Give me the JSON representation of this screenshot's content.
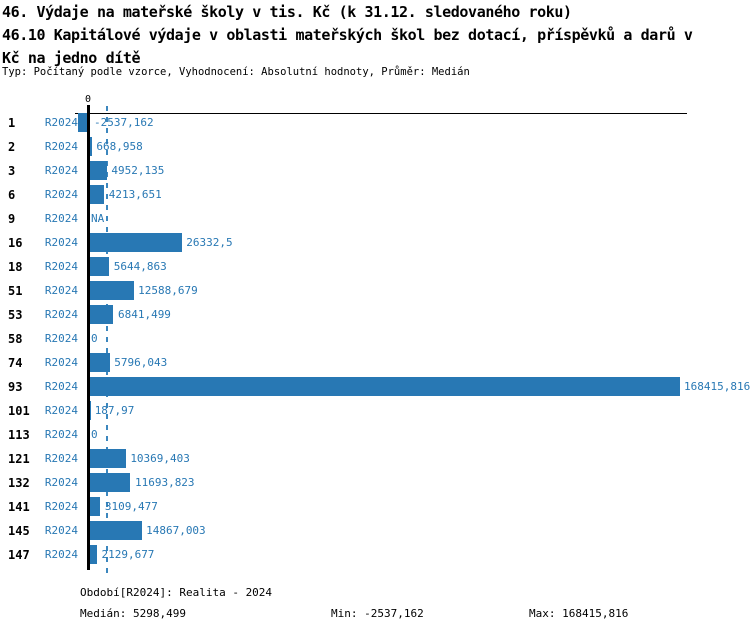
{
  "title": {
    "line1": "46. Výdaje na mateřské školy v tis. Kč (k 31.12. sledovaného roku)",
    "line2": "46.10 Kapitálové výdaje v oblasti mateřských škol bez dotací, příspěvků a darů v",
    "line3": "Kč na jedno dítě",
    "meta": "Typ: Počítaný podle vzorce, Vyhodnocení: Absolutní hodnoty, Průměr: Medián"
  },
  "chart_data": {
    "type": "bar",
    "orientation": "horizontal",
    "axis_zero_label": "0",
    "series_label": "R2024",
    "categories": [
      "1",
      "2",
      "3",
      "6",
      "9",
      "16",
      "18",
      "51",
      "53",
      "58",
      "74",
      "93",
      "101",
      "113",
      "121",
      "132",
      "141",
      "145",
      "147"
    ],
    "values": [
      -2537.162,
      668.958,
      4952.135,
      4213.651,
      null,
      26332.5,
      5644.863,
      12588.679,
      6841.499,
      0,
      5796.043,
      168415.816,
      187.97,
      0,
      10369.403,
      11693.823,
      3109.477,
      14867.003,
      2129.677
    ],
    "value_labels": [
      "-2537,162",
      "668,958",
      "4952,135",
      "4213,651",
      "NA",
      "26332,5",
      "5644,863",
      "12588,679",
      "6841,499",
      "0",
      "5796,043",
      "168415,816",
      "187,97",
      "0",
      "10369,403",
      "11693,823",
      "3109,477",
      "14867,003",
      "2129,677"
    ],
    "median": 5298.499,
    "xlim": [
      -2537.162,
      168415.816
    ],
    "bar_color": "#2878b4",
    "text_color": "#2878b4",
    "median_line_color": "#3c87be",
    "grid": false,
    "legend_position": "none"
  },
  "footer": {
    "period": "Období[R2024]: Realita - 2024",
    "median": "Medián: 5298,499",
    "min": "Min: -2537,162",
    "max": "Max: 168415,816"
  }
}
